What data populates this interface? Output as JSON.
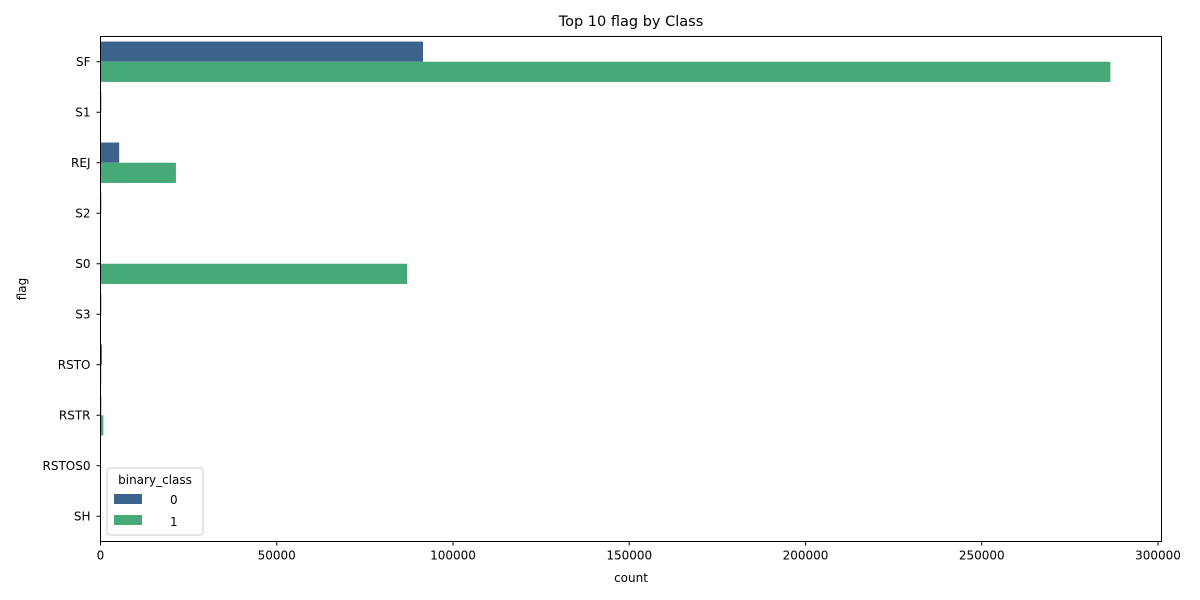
{
  "chart_data": {
    "type": "bar",
    "orientation": "horizontal",
    "title": "Top 10 flag by Class",
    "xlabel": "count",
    "ylabel": "flag",
    "categories": [
      "SF",
      "S1",
      "REJ",
      "S2",
      "S0",
      "S3",
      "RSTO",
      "RSTR",
      "RSTOS0",
      "SH"
    ],
    "series": [
      {
        "name": "0",
        "color": "#3b638c",
        "values": [
          91500,
          10,
          5300,
          5,
          0,
          3,
          400,
          150,
          0,
          0
        ]
      },
      {
        "name": "1",
        "color": "#45aa78",
        "values": [
          286500,
          0,
          21400,
          0,
          87000,
          0,
          100,
          800,
          0,
          0
        ]
      }
    ],
    "xlim": [
      0,
      301000
    ],
    "xticks": [
      0,
      50000,
      100000,
      150000,
      200000,
      250000,
      300000
    ],
    "legend": {
      "title": "binary_class",
      "placement": "lower-left"
    },
    "grid": false
  }
}
